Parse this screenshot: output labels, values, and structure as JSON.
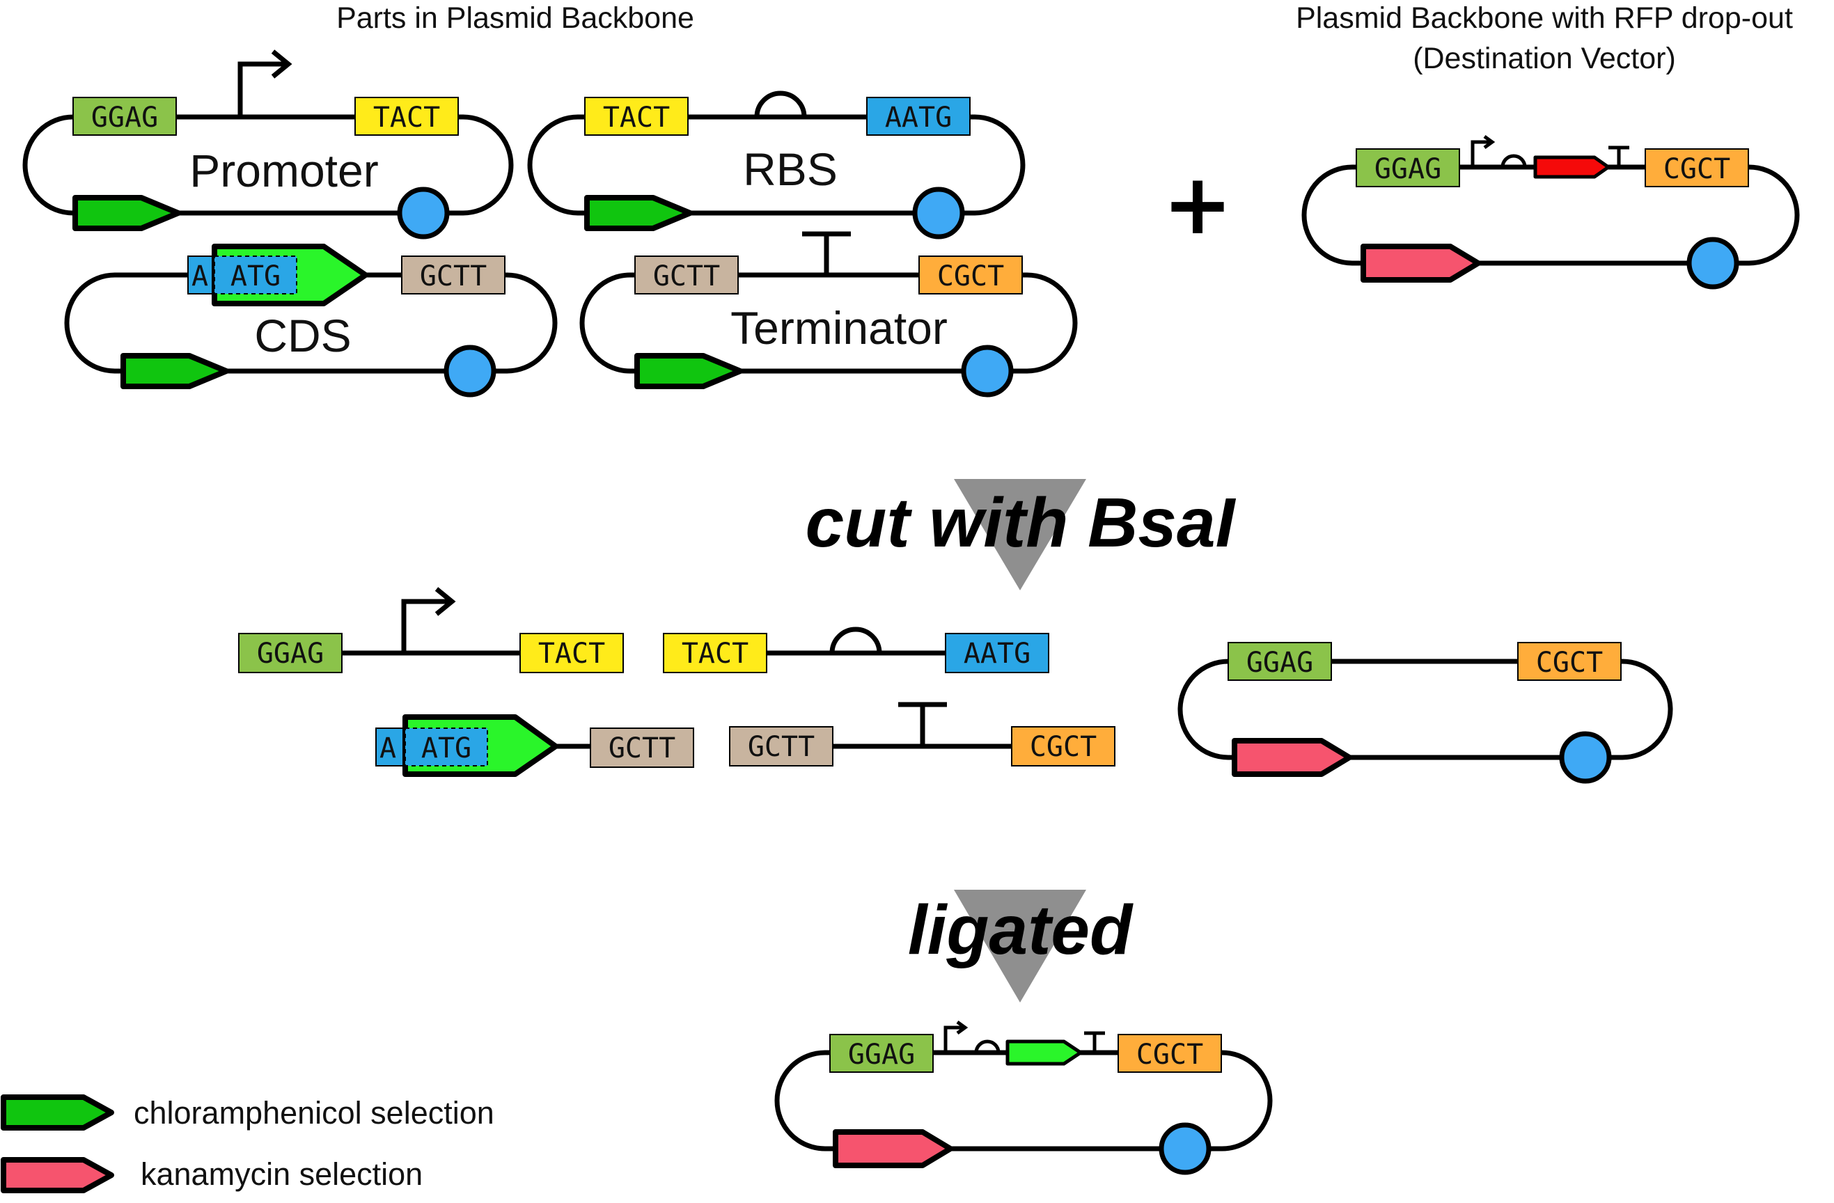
{
  "colors": {
    "GGAG": "#8bc34a",
    "TACT": "#ffeb1a",
    "AATG": "#2aa6e6",
    "GCTT": "#c8b49f",
    "CGCT": "#ffad3b",
    "chloramphenicol": "#10c50f",
    "kanamycin": "#f6546e",
    "rfp": "#f50a0a",
    "cds_insert": "#2af52a",
    "origin": "#3fa9f5",
    "arrow": "#8f8f8f"
  },
  "titles": {
    "parts": "Parts in Plasmid Backbone",
    "destination_line1": "Plasmid Backbone with RFP drop-out",
    "destination_line2": "(Destination Vector)"
  },
  "parts": {
    "promoter": {
      "name": "Promoter",
      "left": "GGAG",
      "right": "TACT"
    },
    "rbs": {
      "name": "RBS",
      "left": "TACT",
      "right": "AATG"
    },
    "cds": {
      "name": "CDS",
      "left": "ATG",
      "left_partial": "A",
      "right": "GCTT"
    },
    "terminator": {
      "name": "Terminator",
      "left": "GCTT",
      "right": "CGCT"
    }
  },
  "destination": {
    "left": "GGAG",
    "right": "CGCT"
  },
  "plus": "+",
  "steps": {
    "cut": "cut with BsaI",
    "ligated": "ligated"
  },
  "legend": {
    "chloramphenicol": "chloramphenicol selection",
    "kanamycin": "kanamycin selection"
  }
}
